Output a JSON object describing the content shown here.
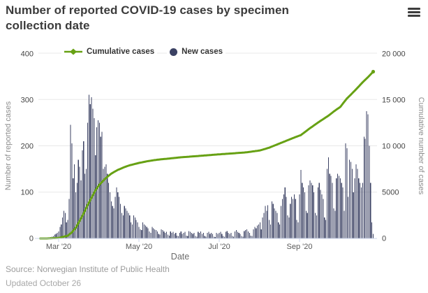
{
  "header": {
    "title": "Number of reported COVID-19 cases by specimen collection date"
  },
  "legend": {
    "items": [
      {
        "label": "Cumulative cases",
        "marker": "green-line-diamond"
      },
      {
        "label": "New cases",
        "marker": "navy-circle"
      }
    ]
  },
  "footer": {
    "source": "Source: Norwegian Institute of Public Health",
    "updated": "Updated October 26"
  },
  "colors": {
    "cumulative_line": "#67a114",
    "new_cases_bar": "#3b4163",
    "grid": "#e8e8e8",
    "axis_line": "#ccd6eb"
  },
  "chart_data": {
    "type": "combo",
    "title": "Number of reported COVID-19 cases by specimen collection date",
    "xlabel": "Date",
    "ylabel_left": "Number of reported cases",
    "ylabel_right": "Cumulative number of cases",
    "ylim_left": [
      0,
      400
    ],
    "ylim_right": [
      0,
      20000
    ],
    "yticks_left": [
      "0",
      "100",
      "200",
      "300",
      "400"
    ],
    "yticks_right": [
      "0",
      "5000",
      "10 000",
      "15 000",
      "20 000"
    ],
    "xticks": [
      "Mar '20",
      "May '20",
      "Jul '20",
      "Sep '20"
    ],
    "grid": "horizontal-only",
    "legend_position": "top",
    "series": [
      {
        "name": "Cumulative cases",
        "type": "line",
        "axis": "right"
      },
      {
        "name": "New cases",
        "type": "column",
        "axis": "left"
      }
    ],
    "start_date": "2020-02-21",
    "end_date": "2020-10-26",
    "frequency": "daily",
    "new_cases": [
      1,
      2,
      1,
      3,
      4,
      5,
      8,
      10,
      12,
      15,
      25,
      30,
      45,
      60,
      55,
      35,
      40,
      85,
      245,
      205,
      130,
      160,
      100,
      120,
      170,
      155,
      125,
      190,
      210,
      140,
      150,
      250,
      310,
      290,
      305,
      280,
      260,
      180,
      240,
      255,
      250,
      220,
      230,
      150,
      155,
      160,
      140,
      120,
      100,
      80,
      70,
      65,
      90,
      110,
      100,
      90,
      75,
      55,
      50,
      70,
      65,
      60,
      55,
      50,
      35,
      30,
      50,
      45,
      40,
      35,
      25,
      20,
      18,
      35,
      30,
      28,
      25,
      22,
      15,
      12,
      25,
      22,
      20,
      18,
      15,
      10,
      8,
      20,
      18,
      15,
      12,
      14,
      8,
      6,
      15,
      12,
      14,
      10,
      12,
      6,
      5,
      12,
      15,
      10,
      12,
      14,
      6,
      5,
      16,
      14,
      12,
      10,
      12,
      5,
      4,
      14,
      12,
      15,
      10,
      12,
      5,
      4,
      12,
      14,
      10,
      12,
      10,
      4,
      3,
      12,
      10,
      12,
      14,
      10,
      5,
      4,
      14,
      16,
      12,
      10,
      12,
      5,
      4,
      15,
      18,
      14,
      12,
      10,
      5,
      4,
      16,
      18,
      20,
      15,
      12,
      6,
      5,
      20,
      25,
      22,
      28,
      30,
      35,
      20,
      45,
      55,
      70,
      60,
      72,
      40,
      30,
      80,
      75,
      65,
      60,
      55,
      35,
      30,
      70,
      85,
      95,
      110,
      90,
      50,
      45,
      75,
      90,
      85,
      95,
      85,
      40,
      35,
      95,
      148,
      120,
      110,
      100,
      60,
      55,
      115,
      125,
      120,
      115,
      100,
      55,
      50,
      110,
      120,
      105,
      95,
      85,
      45,
      40,
      150,
      175,
      140,
      135,
      120,
      65,
      60,
      130,
      140,
      135,
      130,
      120,
      110,
      60,
      205,
      195,
      90,
      170,
      165,
      150,
      100,
      130,
      160,
      150,
      130,
      120,
      110,
      120,
      220,
      215,
      275,
      268,
      200,
      120,
      35,
      10
    ],
    "cumulative_anchor_points": [
      [
        -5,
        0
      ],
      [
        0,
        2
      ],
      [
        9,
        60
      ],
      [
        16,
        300
      ],
      [
        19,
        650
      ],
      [
        22,
        1150
      ],
      [
        25,
        1900
      ],
      [
        28,
        2700
      ],
      [
        31,
        3600
      ],
      [
        34,
        4400
      ],
      [
        37,
        5200
      ],
      [
        40,
        5800
      ],
      [
        44,
        6400
      ],
      [
        49,
        7000
      ],
      [
        54,
        7400
      ],
      [
        59,
        7700
      ],
      [
        63,
        7900
      ],
      [
        70,
        8150
      ],
      [
        77,
        8350
      ],
      [
        84,
        8500
      ],
      [
        91,
        8600
      ],
      [
        101,
        8750
      ],
      [
        115,
        8900
      ],
      [
        131,
        9080
      ],
      [
        141,
        9180
      ],
      [
        152,
        9300
      ],
      [
        162,
        9500
      ],
      [
        169,
        9800
      ],
      [
        176,
        10200
      ],
      [
        183,
        10600
      ],
      [
        190,
        11000
      ],
      [
        193,
        11150
      ],
      [
        200,
        11900
      ],
      [
        207,
        12600
      ],
      [
        214,
        13250
      ],
      [
        218,
        13700
      ],
      [
        223,
        14200
      ],
      [
        228,
        15100
      ],
      [
        233,
        15800
      ],
      [
        237,
        16400
      ],
      [
        241,
        17000
      ],
      [
        244,
        17400
      ],
      [
        246,
        17700
      ],
      [
        248,
        18000
      ]
    ]
  }
}
